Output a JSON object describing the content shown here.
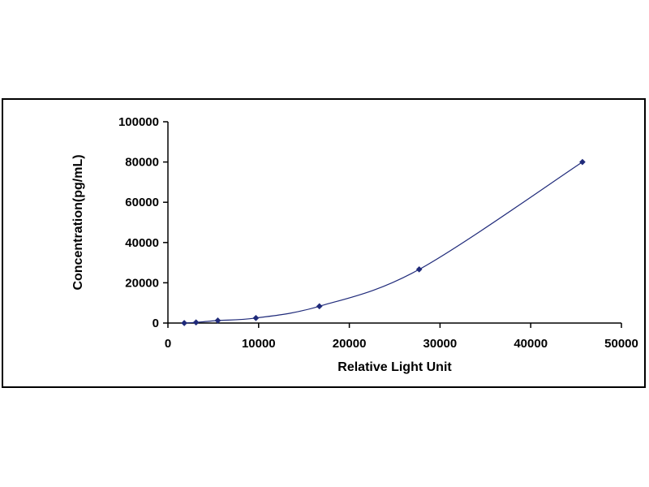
{
  "chart_data": {
    "type": "scatter",
    "title": "",
    "xlabel": "Relative Light Unit",
    "ylabel": "Concentration(pg/mL)",
    "xlim": [
      0,
      50000
    ],
    "ylim": [
      0,
      100000
    ],
    "x_ticks": [
      0,
      10000,
      20000,
      30000,
      40000,
      50000
    ],
    "y_ticks": [
      0,
      20000,
      40000,
      60000,
      80000,
      100000
    ],
    "x_tick_labels": [
      "0",
      "10000",
      "20000",
      "30000",
      "40000",
      "50000"
    ],
    "y_tick_labels": [
      "0",
      "20000",
      "40000",
      "60000",
      "80000",
      "100000"
    ],
    "grid": false,
    "legend": "none",
    "marker_color": "#1f2a7a",
    "line_color": "#1f2a7a",
    "trendline": "smooth",
    "series": [
      {
        "x": [
          1800,
          3100,
          5500,
          9700,
          16700,
          27700,
          45700
        ],
        "y": [
          0,
          312,
          1250,
          2500,
          8333,
          26667,
          80000
        ]
      }
    ]
  }
}
